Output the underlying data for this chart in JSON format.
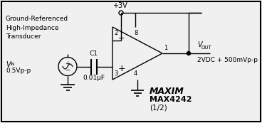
{
  "bg_color": "#f0f0f0",
  "line_color": "#000000",
  "figsize": [
    3.68,
    1.73
  ],
  "dpi": 100,
  "labels": {
    "transducer": "Ground-Referenced\nHigh-Impedance\nTransducer",
    "vin_val": "0.5Vp-p",
    "c1": "C1",
    "c1_val": "0.01μF",
    "vcc": "+3V",
    "pin2": "2",
    "pin8": "8",
    "pin3": "3",
    "pin4": "4",
    "pin1": "1",
    "vout_val": "2VDC + 500mVp-p",
    "maxim": "MAXIM",
    "ic": "MAX4242",
    "ic_sub": "(1/2)",
    "minus": "−",
    "plus": "+"
  }
}
